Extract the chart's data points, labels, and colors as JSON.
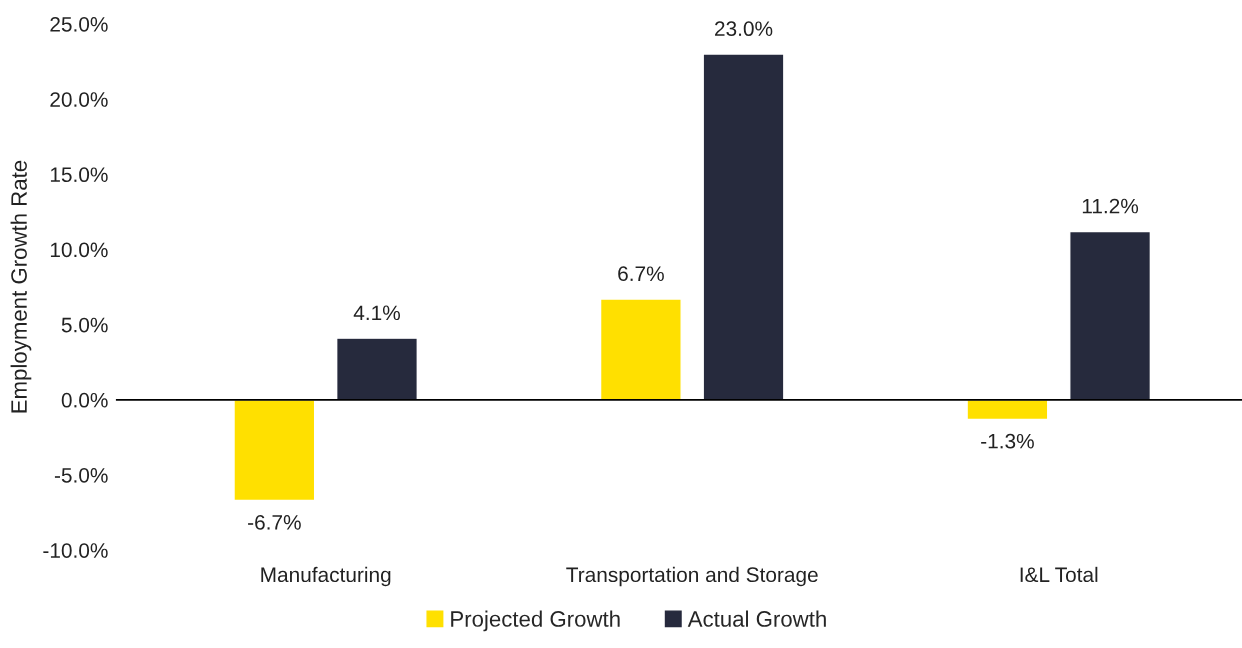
{
  "chart_data": {
    "type": "bar",
    "ylabel": "Employment Growth Rate",
    "categories": [
      "Manufacturing",
      "Transportation and Storage",
      "I&L Total"
    ],
    "series": [
      {
        "name": "Projected Growth",
        "color": "#ffe000",
        "values": [
          -6.7,
          6.7,
          -1.3
        ],
        "value_labels": [
          "-6.7%",
          "6.7%",
          "-1.3%"
        ]
      },
      {
        "name": "Actual Growth",
        "color": "#262a3d",
        "values": [
          4.1,
          23.0,
          11.2
        ],
        "value_labels": [
          "4.1%",
          "23.0%",
          "11.2%"
        ]
      }
    ],
    "ylim": [
      -10,
      25
    ],
    "yticks": [
      {
        "value": -10,
        "label": "-10.0%"
      },
      {
        "value": -5,
        "label": "-5.0%"
      },
      {
        "value": 0,
        "label": "0.0%"
      },
      {
        "value": 5,
        "label": "5.0%"
      },
      {
        "value": 10,
        "label": "10.0%"
      },
      {
        "value": 15,
        "label": "15.0%"
      },
      {
        "value": 20,
        "label": "20.0%"
      },
      {
        "value": 25,
        "label": "25.0%"
      }
    ],
    "legend": "bottom"
  }
}
